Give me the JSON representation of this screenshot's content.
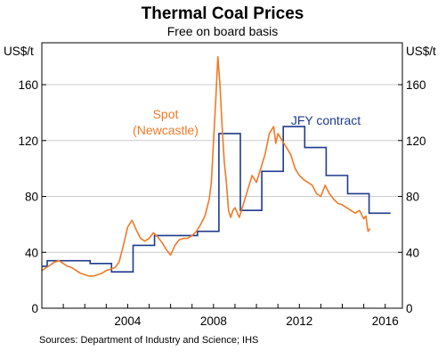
{
  "chart_data": {
    "type": "line",
    "title": "Thermal Coal Prices",
    "subtitle": "Free on board basis",
    "left_unit": "US$/t",
    "right_unit": "US$/t",
    "xlim": [
      2000.0,
      2016.8
    ],
    "ylim": [
      0,
      190
    ],
    "y_ticks": [
      0,
      40,
      80,
      120,
      160
    ],
    "x_ticks": [
      2004,
      2008,
      2012,
      2016
    ],
    "grid": "horizontal",
    "source": "Sources:  Department of Industry and Science; IHS",
    "colors": {
      "spot": "#f07a26",
      "jfy": "#1f3a8c",
      "grid": "#cccccc",
      "frame": "#000000"
    },
    "series": [
      {
        "name": "Spot (Newcastle)",
        "label_lines": [
          "Spot",
          "(Newcastle)"
        ],
        "color": "#f07a26",
        "x": [
          2000.0,
          2000.2,
          2000.4,
          2000.6,
          2000.8,
          2001.0,
          2001.2,
          2001.4,
          2001.6,
          2001.8,
          2002.0,
          2002.2,
          2002.4,
          2002.6,
          2002.8,
          2003.0,
          2003.2,
          2003.4,
          2003.6,
          2003.8,
          2004.0,
          2004.2,
          2004.4,
          2004.6,
          2004.8,
          2005.0,
          2005.2,
          2005.4,
          2005.6,
          2005.8,
          2006.0,
          2006.2,
          2006.4,
          2006.6,
          2006.8,
          2007.0,
          2007.2,
          2007.4,
          2007.6,
          2007.8,
          2007.9,
          2008.0,
          2008.1,
          2008.2,
          2008.3,
          2008.4,
          2008.5,
          2008.6,
          2008.7,
          2008.8,
          2008.9,
          2009.0,
          2009.2,
          2009.4,
          2009.6,
          2009.8,
          2010.0,
          2010.2,
          2010.4,
          2010.6,
          2010.8,
          2010.9,
          2011.0,
          2011.2,
          2011.4,
          2011.6,
          2011.8,
          2012.0,
          2012.2,
          2012.4,
          2012.6,
          2012.8,
          2013.0,
          2013.2,
          2013.4,
          2013.6,
          2013.8,
          2014.0,
          2014.2,
          2014.4,
          2014.6,
          2014.8,
          2015.0,
          2015.1,
          2015.2,
          2015.3
        ],
        "y": [
          27,
          29,
          31,
          33,
          34,
          32,
          30,
          29,
          27,
          25,
          24,
          23,
          23,
          24,
          25,
          27,
          28,
          29,
          33,
          45,
          58,
          63,
          56,
          50,
          48,
          50,
          54,
          51,
          47,
          42,
          38,
          45,
          49,
          50,
          50,
          52,
          55,
          60,
          66,
          78,
          90,
          120,
          148,
          180,
          160,
          130,
          105,
          90,
          70,
          65,
          70,
          72,
          65,
          75,
          85,
          95,
          90,
          100,
          110,
          125,
          130,
          118,
          125,
          120,
          115,
          110,
          100,
          95,
          92,
          90,
          88,
          82,
          80,
          88,
          82,
          78,
          75,
          74,
          72,
          70,
          68,
          70,
          64,
          66,
          55,
          57
        ]
      },
      {
        "name": "JFY contract",
        "label_lines": [
          "JFY contract"
        ],
        "color": "#1f3a8c",
        "x": [
          2000.0,
          2000.25,
          2001.25,
          2002.25,
          2003.25,
          2004.25,
          2005.25,
          2006.25,
          2007.25,
          2008.25,
          2009.25,
          2010.25,
          2011.25,
          2012.25,
          2013.25,
          2014.25,
          2015.25,
          2016.25
        ],
        "y": [
          30,
          34,
          34,
          32,
          26,
          45,
          52,
          52,
          55,
          125,
          70,
          98,
          130,
          115,
          95,
          82,
          68,
          68
        ]
      }
    ]
  }
}
